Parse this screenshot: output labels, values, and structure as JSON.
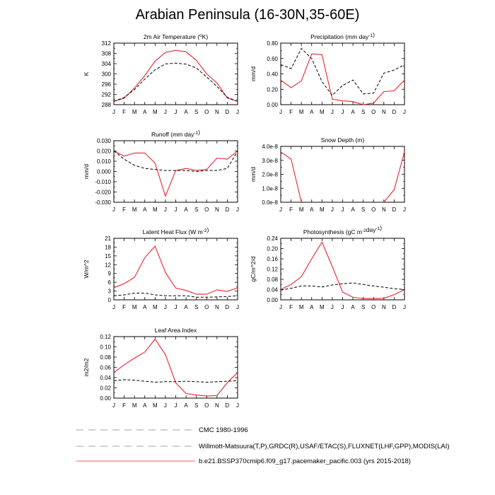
{
  "page_title": "Arabian Peninsula (16-30N,35-60E)",
  "colors": {
    "model": "#e8252c",
    "obs": "#000000",
    "legend_obs": "#a0a0cf",
    "legend_model": "#ff5a5a"
  },
  "legend": [
    {
      "label": "CMC 1980-1996",
      "style": "dash-grey"
    },
    {
      "label": "Willmott-Matsuura(T,P),GRDC(R),USAF/ETAC(S),FLUXNET(LHF,GPP),MODIS(LAI)",
      "style": "dash-blue"
    },
    {
      "label": "b.e21.BSSP370cmip6.f09_g17.pacemaker_pacific.003 (yrs 2015-2018)",
      "style": "solid-red"
    }
  ],
  "chart_data": [
    {
      "id": "temp",
      "type": "line",
      "title": "2m Air Temperature (°K)",
      "ylabel": "K",
      "categories": [
        "J",
        "F",
        "M",
        "A",
        "M",
        "J",
        "J",
        "A",
        "S",
        "O",
        "N",
        "D",
        "J"
      ],
      "ylim": [
        288,
        312
      ],
      "yticks": [
        "288",
        "292",
        "296",
        "300",
        "304",
        "308",
        "312"
      ],
      "series": [
        {
          "style": "solid-red",
          "values": [
            289.3,
            290.5,
            294.5,
            299.3,
            305.0,
            308.4,
            309.2,
            308.6,
            305.3,
            300.0,
            296.5,
            290.6,
            289.3
          ]
        },
        {
          "style": "dash-black",
          "values": [
            289.3,
            290.8,
            293.9,
            298.0,
            301.6,
            303.9,
            304.2,
            303.8,
            302.3,
            298.8,
            295.1,
            290.9,
            289.3
          ]
        }
      ]
    },
    {
      "id": "precip",
      "type": "line",
      "title": "Precipitation (mm day-1)",
      "ylabel": "mm/d",
      "categories": [
        "J",
        "F",
        "M",
        "A",
        "M",
        "J",
        "J",
        "A",
        "S",
        "O",
        "N",
        "D",
        "J"
      ],
      "ylim": [
        0,
        0.8
      ],
      "yticks": [
        "0.00",
        "0.20",
        "0.40",
        "0.60",
        "0.80"
      ],
      "series": [
        {
          "style": "solid-red",
          "values": [
            0.32,
            0.22,
            0.31,
            0.66,
            0.65,
            0.07,
            0.05,
            0.04,
            0.0,
            0.02,
            0.17,
            0.18,
            0.32
          ]
        },
        {
          "style": "dash-black",
          "values": [
            0.52,
            0.47,
            0.73,
            0.6,
            0.3,
            0.12,
            0.25,
            0.32,
            0.14,
            0.15,
            0.41,
            0.45,
            0.52
          ]
        }
      ]
    },
    {
      "id": "runoff",
      "type": "line",
      "title": "Runoff (mm day-1)",
      "ylabel": "mm/d",
      "categories": [
        "J",
        "F",
        "M",
        "A",
        "M",
        "J",
        "J",
        "A",
        "S",
        "O",
        "N",
        "D",
        "J"
      ],
      "ylim": [
        -0.03,
        0.03
      ],
      "yticks": [
        "-0.030",
        "-0.020",
        "-0.010",
        "0.000",
        "0.010",
        "0.020",
        "0.030"
      ],
      "series": [
        {
          "style": "solid-red",
          "values": [
            0.02,
            0.015,
            0.018,
            0.018,
            0.008,
            -0.024,
            0.001,
            0.003,
            0.001,
            0.002,
            0.013,
            0.012,
            0.02
          ]
        },
        {
          "style": "dash-black",
          "values": [
            0.02,
            0.012,
            0.006,
            0.003,
            0.002,
            0.001,
            0.001,
            0.001,
            0.0,
            0.001,
            0.001,
            0.003,
            0.02
          ]
        }
      ]
    },
    {
      "id": "snow",
      "type": "line",
      "title": "Snow Depth (m)",
      "ylabel": "mm/d",
      "categories": [
        "J",
        "F",
        "M",
        "A",
        "M",
        "J",
        "J",
        "A",
        "S",
        "O",
        "N",
        "D",
        "J"
      ],
      "ylim": [
        0,
        4
      ],
      "yticks": [
        "0.0e-8",
        "1.0e-8",
        "2.0e-8",
        "3.0e-8",
        "4.0e-8"
      ],
      "series": [
        {
          "style": "solid-red",
          "values": [
            3.6,
            3.1,
            0.0,
            null,
            null,
            null,
            null,
            null,
            null,
            null,
            0.0,
            0.9,
            3.6
          ]
        }
      ]
    },
    {
      "id": "lhf",
      "type": "line",
      "title": "Latent Heat Flux (W m-2)",
      "ylabel": "W/m^2",
      "categories": [
        "J",
        "F",
        "M",
        "A",
        "M",
        "J",
        "J",
        "A",
        "S",
        "O",
        "N",
        "D",
        "J"
      ],
      "ylim": [
        0,
        21
      ],
      "yticks": [
        "0",
        "3",
        "6",
        "9",
        "12",
        "15",
        "18",
        "21"
      ],
      "series": [
        {
          "style": "solid-red",
          "values": [
            4.2,
            5.5,
            7.7,
            14.4,
            18.3,
            9.4,
            4.0,
            3.2,
            1.9,
            1.9,
            3.4,
            2.9,
            4.1
          ]
        },
        {
          "style": "dash-black",
          "values": [
            1.4,
            1.7,
            2.3,
            2.3,
            1.7,
            1.4,
            1.4,
            1.4,
            0.9,
            0.9,
            1.0,
            1.1,
            1.4
          ]
        }
      ]
    },
    {
      "id": "gpp",
      "type": "line",
      "title": "Photosynthesis (gC m-2day-1)",
      "ylabel": "gC/m^2/d",
      "categories": [
        "J",
        "F",
        "M",
        "A",
        "M",
        "J",
        "J",
        "A",
        "S",
        "O",
        "N",
        "D",
        "J"
      ],
      "ylim": [
        0,
        0.24
      ],
      "yticks": [
        "0.00",
        "0.04",
        "0.08",
        "0.12",
        "0.16",
        "0.20",
        "0.24"
      ],
      "series": [
        {
          "style": "solid-red",
          "values": [
            0.04,
            0.06,
            0.09,
            0.16,
            0.225,
            0.13,
            0.03,
            0.01,
            0.005,
            0.005,
            0.006,
            0.02,
            0.04
          ]
        },
        {
          "style": "dash-black",
          "values": [
            0.038,
            0.045,
            0.054,
            0.054,
            0.05,
            0.058,
            0.063,
            0.066,
            0.06,
            0.054,
            0.049,
            0.044,
            0.04
          ]
        }
      ]
    },
    {
      "id": "lai",
      "type": "line",
      "title": "Leaf Area Index",
      "ylabel": "m2/m2",
      "categories": [
        "J",
        "F",
        "M",
        "A",
        "M",
        "J",
        "J",
        "A",
        "S",
        "O",
        "N",
        "D",
        "J"
      ],
      "ylim": [
        0,
        0.12
      ],
      "yticks": [
        "0.00",
        "0.02",
        "0.04",
        "0.06",
        "0.08",
        "0.10",
        "0.12"
      ],
      "series": [
        {
          "style": "solid-red",
          "values": [
            0.05,
            0.065,
            0.078,
            0.09,
            0.115,
            0.085,
            0.03,
            0.009,
            0.006,
            0.004,
            0.005,
            0.03,
            0.05
          ]
        },
        {
          "style": "dash-black",
          "values": [
            0.034,
            0.036,
            0.035,
            0.033,
            0.031,
            0.032,
            0.032,
            0.033,
            0.032,
            0.031,
            0.032,
            0.033,
            0.034
          ]
        }
      ]
    }
  ]
}
